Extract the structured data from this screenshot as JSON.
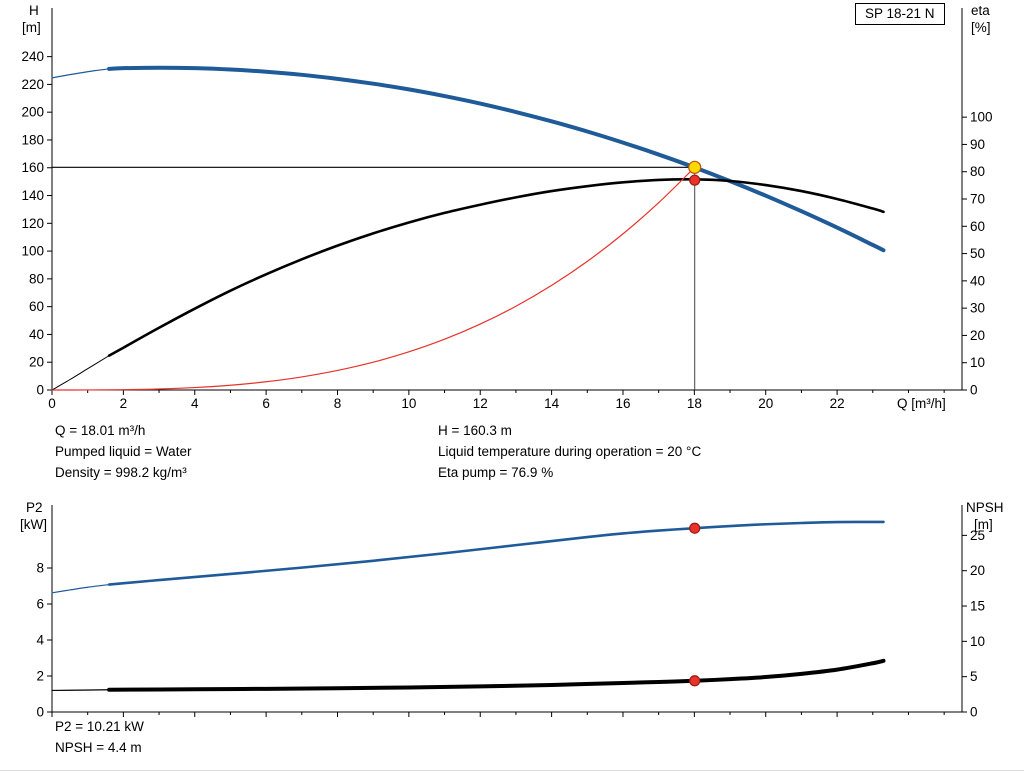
{
  "model_box": {
    "label": "SP 18-21 N"
  },
  "axes": {
    "top": {
      "left_title": "H",
      "left_unit": "[m]",
      "right_title": "eta",
      "right_unit": "[%]",
      "x_title": "Q [m³/h]"
    },
    "bottom": {
      "left_title": "P2",
      "left_unit": "[kW]",
      "right_title": "NPSH",
      "right_unit": "[m]"
    }
  },
  "annotations": {
    "top_left": [
      "Q = 18.01 m³/h",
      "Pumped liquid = Water",
      "Density = 998.2 kg/m³"
    ],
    "top_right": [
      "H = 160.3 m",
      "Liquid temperature during operation = 20 °C",
      "Eta pump = 76.9 %"
    ],
    "bottom": [
      "P2 = 10.21 kW",
      "NPSH = 4.4 m"
    ]
  },
  "colors": {
    "curve_blue": "#1f5b99",
    "curve_black": "#000000",
    "curve_red": "#e8322a",
    "marker_yellow": "#ffd800",
    "marker_red": "#e8322a",
    "axis": "#000000"
  },
  "chart_data": [
    {
      "type": "line",
      "title": "",
      "xlabel": "Q [m³/h]",
      "ylabel_left": "H [m]",
      "ylabel_right": "eta [%]",
      "xlim": [
        0,
        25.5
      ],
      "ylim_left": [
        0,
        275
      ],
      "ylim_right": [
        0,
        140
      ],
      "x_ticks": [
        0,
        2,
        4,
        6,
        8,
        10,
        12,
        14,
        16,
        18,
        20,
        22
      ],
      "y_ticks_left": [
        0,
        20,
        40,
        60,
        80,
        100,
        120,
        140,
        160,
        180,
        200,
        220,
        240
      ],
      "y_ticks_right": [
        0,
        10,
        20,
        30,
        40,
        50,
        60,
        70,
        80,
        90,
        100
      ],
      "grid": false,
      "duty": {
        "q": 18.01,
        "h": 160.3
      },
      "series": [
        {
          "name": "head-curve-low-flow-lead",
          "axis": "left",
          "color": "#1f5b99",
          "width": 1.2,
          "points": [
            [
              0,
              224.7
            ],
            [
              0.4,
              226.6
            ],
            [
              0.8,
              228.3
            ],
            [
              1.2,
              229.9
            ],
            [
              1.6,
              231.2
            ]
          ]
        },
        {
          "name": "head-curve",
          "axis": "left",
          "color": "#1f5b99",
          "width": 4,
          "points": [
            [
              1.6,
              231.2
            ],
            [
              2,
              231.7
            ],
            [
              3,
              232
            ],
            [
              4,
              231.7
            ],
            [
              5,
              230.7
            ],
            [
              6,
              229.1
            ],
            [
              7,
              226.9
            ],
            [
              8,
              224
            ],
            [
              9,
              220.5
            ],
            [
              10,
              216.4
            ],
            [
              11,
              211.6
            ],
            [
              12,
              206.2
            ],
            [
              13,
              200.1
            ],
            [
              14,
              193.4
            ],
            [
              15,
              186.1
            ],
            [
              16,
              178.1
            ],
            [
              17,
              169.5
            ],
            [
              18,
              160.3
            ],
            [
              19,
              150.4
            ],
            [
              20,
              139.9
            ],
            [
              21,
              128.7
            ],
            [
              22,
              116.9
            ],
            [
              23,
              104.4
            ],
            [
              23.3,
              100.6
            ]
          ]
        },
        {
          "name": "efficiency-curve-low-flow-lead",
          "axis": "right",
          "color": "#000000",
          "width": 1,
          "points": [
            [
              0,
              0
            ],
            [
              0.5,
              3.8
            ],
            [
              1,
              7.8
            ],
            [
              1.6,
              12.6
            ]
          ]
        },
        {
          "name": "efficiency-curve",
          "axis": "right",
          "color": "#000000",
          "width": 2.6,
          "points": [
            [
              1.6,
              12.6
            ],
            [
              2,
              15.5
            ],
            [
              3,
              22.8
            ],
            [
              4,
              29.8
            ],
            [
              5,
              36.4
            ],
            [
              6,
              42.4
            ],
            [
              7,
              47.9
            ],
            [
              8,
              52.9
            ],
            [
              9,
              57.4
            ],
            [
              10,
              61.4
            ],
            [
              11,
              64.9
            ],
            [
              12,
              67.9
            ],
            [
              13,
              70.6
            ],
            [
              14,
              72.9
            ],
            [
              15,
              74.7
            ],
            [
              16,
              76.1
            ],
            [
              17,
              77
            ],
            [
              18,
              77.2
            ],
            [
              19,
              76.6
            ],
            [
              20,
              75.1
            ],
            [
              21,
              72.9
            ],
            [
              22,
              70
            ],
            [
              23,
              66.5
            ],
            [
              23.3,
              65.3
            ]
          ]
        },
        {
          "name": "system-resistance-curve",
          "axis": "left",
          "color": "#e8322a",
          "width": 1.2,
          "points": [
            [
              0,
              0
            ],
            [
              1,
              0.03
            ],
            [
              2,
              0.22
            ],
            [
              3,
              0.74
            ],
            [
              4,
              1.76
            ],
            [
              5,
              3.43
            ],
            [
              6,
              5.93
            ],
            [
              7,
              9.42
            ],
            [
              8,
              14.06
            ],
            [
              9,
              20
            ],
            [
              10,
              27.46
            ],
            [
              11,
              36.54
            ],
            [
              12,
              47.44
            ],
            [
              13,
              60.3
            ],
            [
              14,
              75.31
            ],
            [
              15,
              92.62
            ],
            [
              16,
              112.4
            ],
            [
              17,
              134.82
            ],
            [
              18.01,
              160.3
            ]
          ]
        }
      ],
      "markers": [
        {
          "name": "duty-point-head",
          "q": 18.01,
          "value": 160.3,
          "axis": "left",
          "fill": "#ffd800",
          "stroke": "#b45309",
          "r": 6
        },
        {
          "name": "duty-point-eta",
          "q": 18.01,
          "value": 76.9,
          "axis": "right",
          "fill": "#e8322a",
          "stroke": "#991b12",
          "r": 5
        }
      ]
    },
    {
      "type": "line",
      "title": "",
      "xlabel": "",
      "ylabel_left": "P2 [kW]",
      "ylabel_right": "NPSH [m]",
      "xlim": [
        0,
        25.5
      ],
      "ylim_left": [
        0,
        11.5
      ],
      "ylim_right": [
        0,
        29.3
      ],
      "x_ticks": [
        0,
        2,
        4,
        6,
        8,
        10,
        12,
        14,
        16,
        18,
        20,
        22
      ],
      "y_ticks_left": [
        0,
        2,
        4,
        6,
        8
      ],
      "y_ticks_right": [
        0,
        5,
        10,
        15,
        20,
        25
      ],
      "grid": false,
      "duty": null,
      "series": [
        {
          "name": "p2-curve-low-flow-lead",
          "axis": "left",
          "color": "#1f5b99",
          "width": 1.2,
          "points": [
            [
              0,
              6.62
            ],
            [
              0.5,
              6.78
            ],
            [
              1,
              6.93
            ],
            [
              1.6,
              7.08
            ]
          ]
        },
        {
          "name": "p2-curve",
          "axis": "left",
          "color": "#1f5b99",
          "width": 2.6,
          "points": [
            [
              1.6,
              7.08
            ],
            [
              3,
              7.33
            ],
            [
              5,
              7.67
            ],
            [
              7,
              8.02
            ],
            [
              9,
              8.4
            ],
            [
              11,
              8.82
            ],
            [
              13,
              9.27
            ],
            [
              15,
              9.72
            ],
            [
              16,
              9.92
            ],
            [
              17,
              10.08
            ],
            [
              18.01,
              10.21
            ],
            [
              19,
              10.33
            ],
            [
              20,
              10.43
            ],
            [
              21,
              10.5
            ],
            [
              22,
              10.55
            ],
            [
              23.3,
              10.56
            ]
          ]
        },
        {
          "name": "npsh-curve-low-flow-lead",
          "axis": "right",
          "color": "#000000",
          "width": 1.2,
          "points": [
            [
              0,
              3.05
            ],
            [
              0.8,
              3.1
            ],
            [
              1.6,
              3.15
            ]
          ]
        },
        {
          "name": "npsh-curve",
          "axis": "right",
          "color": "#000000",
          "width": 4,
          "points": [
            [
              1.6,
              3.15
            ],
            [
              4,
              3.22
            ],
            [
              6,
              3.28
            ],
            [
              8,
              3.36
            ],
            [
              10,
              3.47
            ],
            [
              12,
              3.62
            ],
            [
              14,
              3.83
            ],
            [
              16,
              4.1
            ],
            [
              17,
              4.25
            ],
            [
              18.01,
              4.42
            ],
            [
              19,
              4.65
            ],
            [
              20,
              4.95
            ],
            [
              21,
              5.4
            ],
            [
              22,
              6
            ],
            [
              23,
              6.9
            ],
            [
              23.3,
              7.25
            ]
          ]
        }
      ],
      "markers": [
        {
          "name": "duty-point-p2",
          "q": 18.01,
          "value": 10.21,
          "axis": "left",
          "fill": "#e8322a",
          "stroke": "#991b12",
          "r": 5
        },
        {
          "name": "duty-point-npsh",
          "q": 18.01,
          "value": 4.42,
          "axis": "right",
          "fill": "#e8322a",
          "stroke": "#991b12",
          "r": 5
        }
      ]
    }
  ]
}
